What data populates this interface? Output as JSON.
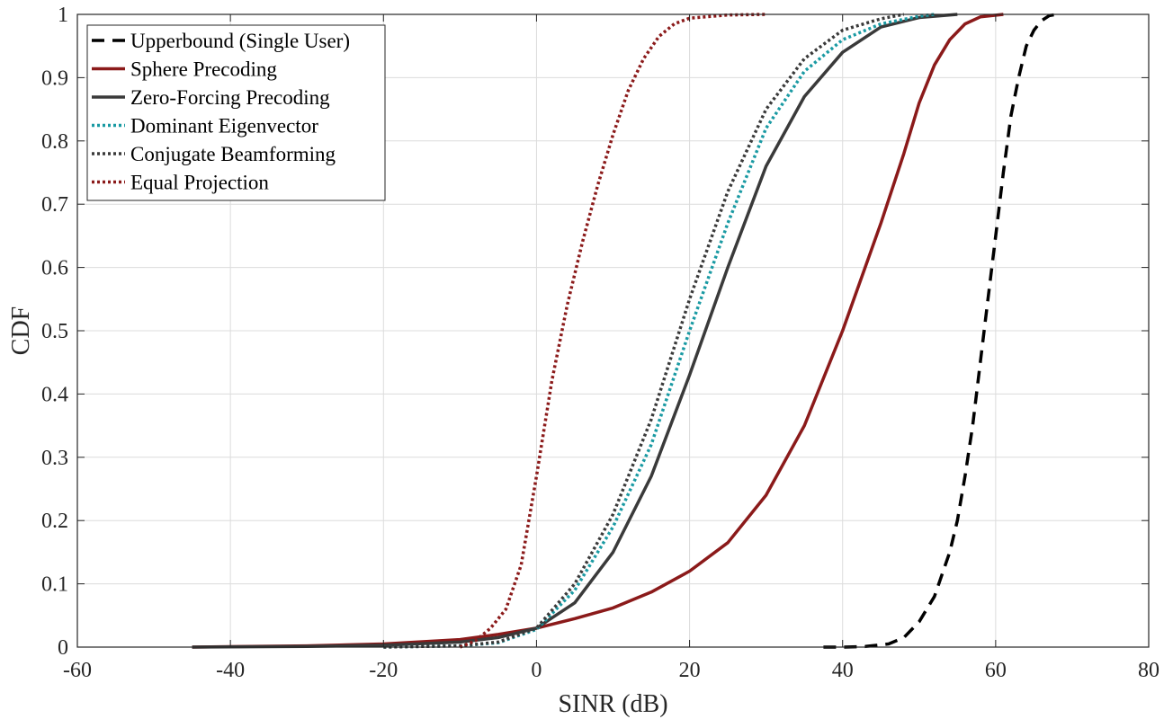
{
  "chart_data": {
    "type": "line",
    "title": "",
    "xlabel": "SINR (dB)",
    "ylabel": "CDF",
    "xlim": [
      -60,
      80
    ],
    "ylim": [
      0,
      1
    ],
    "x_ticks": [
      -60,
      -40,
      -20,
      0,
      20,
      40,
      60,
      80
    ],
    "y_ticks": [
      0,
      0.1,
      0.2,
      0.3,
      0.4,
      0.5,
      0.6,
      0.7,
      0.8,
      0.9,
      1
    ],
    "x_tick_labels": [
      "-60",
      "-40",
      "-20",
      "0",
      "20",
      "40",
      "60",
      "80"
    ],
    "y_tick_labels": [
      "0",
      "0.1",
      "0.2",
      "0.3",
      "0.4",
      "0.5",
      "0.6",
      "0.7",
      "0.8",
      "0.9",
      "1"
    ],
    "grid": true,
    "legend_position": "top-left",
    "series": [
      {
        "name": "Upperbound (Single User)",
        "color": "#000000",
        "style": "dashed",
        "x": [
          37.5,
          40,
          43,
          46,
          48,
          50,
          52,
          54,
          55,
          56,
          57,
          58,
          59,
          60,
          61,
          62,
          63,
          64,
          65,
          66,
          67,
          68
        ],
        "y": [
          0,
          0,
          0.001,
          0.005,
          0.015,
          0.04,
          0.08,
          0.15,
          0.2,
          0.27,
          0.35,
          0.45,
          0.55,
          0.65,
          0.75,
          0.84,
          0.9,
          0.95,
          0.975,
          0.99,
          0.998,
          1
        ]
      },
      {
        "name": "Sphere Precoding",
        "color": "#8b1a1a",
        "style": "solid",
        "x": [
          -45,
          -30,
          -20,
          -10,
          -5,
          0,
          5,
          10,
          15,
          20,
          25,
          30,
          35,
          40,
          45,
          48,
          50,
          52,
          54,
          56,
          58,
          61
        ],
        "y": [
          0,
          0.002,
          0.005,
          0.012,
          0.02,
          0.03,
          0.045,
          0.062,
          0.087,
          0.12,
          0.165,
          0.24,
          0.35,
          0.5,
          0.67,
          0.78,
          0.86,
          0.92,
          0.96,
          0.985,
          0.996,
          1
        ]
      },
      {
        "name": "Zero-Forcing Precoding",
        "color": "#3a3a3a",
        "style": "solid",
        "x": [
          -45,
          -30,
          -20,
          -10,
          -5,
          0,
          5,
          10,
          15,
          20,
          25,
          30,
          35,
          40,
          45,
          50,
          55
        ],
        "y": [
          0,
          0.001,
          0.003,
          0.008,
          0.015,
          0.03,
          0.07,
          0.15,
          0.27,
          0.43,
          0.6,
          0.76,
          0.87,
          0.94,
          0.98,
          0.995,
          1
        ]
      },
      {
        "name": "Dominant Eigenvector",
        "color": "#1a9aa3",
        "style": "dotted",
        "x": [
          -20,
          -10,
          -5,
          0,
          5,
          10,
          15,
          20,
          25,
          30,
          35,
          40,
          45,
          50,
          52
        ],
        "y": [
          0,
          0.002,
          0.007,
          0.028,
          0.09,
          0.19,
          0.32,
          0.5,
          0.67,
          0.82,
          0.91,
          0.96,
          0.985,
          0.997,
          1
        ]
      },
      {
        "name": "Conjugate Beamforming",
        "color": "#3a3a3a",
        "style": "dotted",
        "x": [
          -20,
          -10,
          -5,
          0,
          5,
          10,
          15,
          20,
          25,
          30,
          35,
          40,
          45,
          48
        ],
        "y": [
          0,
          0.002,
          0.008,
          0.03,
          0.1,
          0.21,
          0.36,
          0.55,
          0.72,
          0.85,
          0.93,
          0.975,
          0.993,
          1
        ]
      },
      {
        "name": "Equal Projection",
        "color": "#8b1a1a",
        "style": "dotted",
        "x": [
          -10,
          -8,
          -6,
          -4,
          -2,
          0,
          2,
          4,
          6,
          8,
          10,
          12,
          14,
          16,
          18,
          20,
          25,
          30
        ],
        "y": [
          0,
          0.01,
          0.03,
          0.06,
          0.13,
          0.27,
          0.42,
          0.54,
          0.64,
          0.73,
          0.81,
          0.88,
          0.93,
          0.965,
          0.985,
          0.994,
          0.999,
          1
        ]
      }
    ]
  }
}
